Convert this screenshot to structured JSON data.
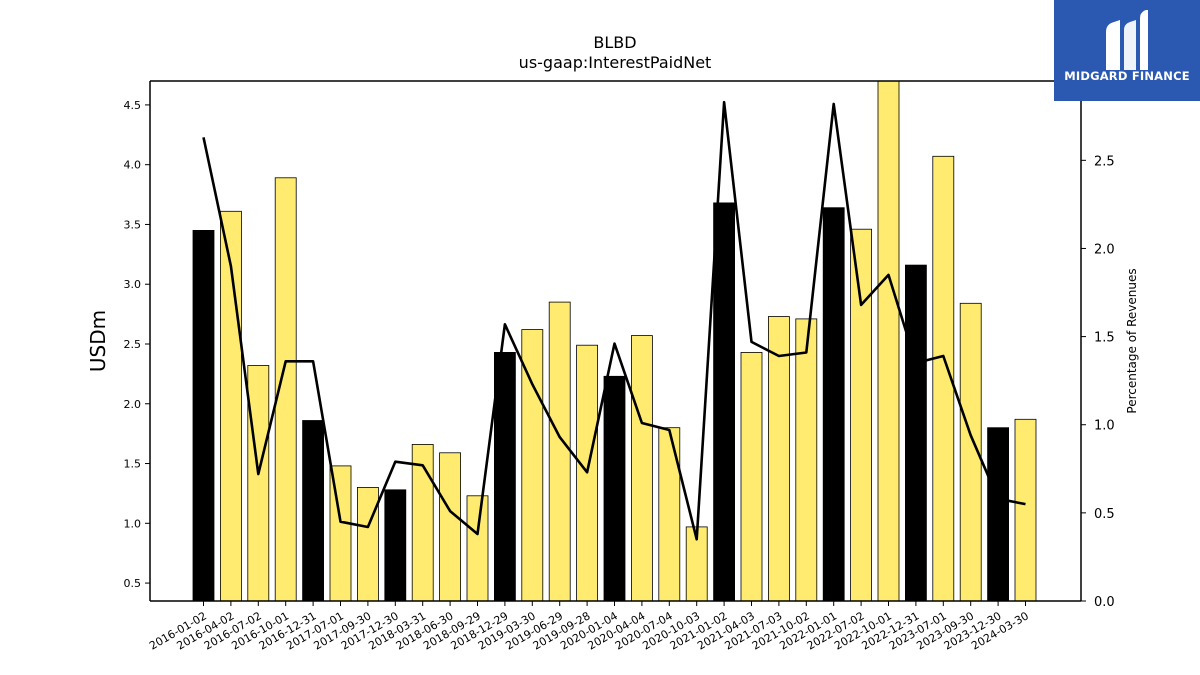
{
  "brand": {
    "name": "MIDGARD FINANCE",
    "logo_icon": "midgard-m-logo-icon",
    "background": "#2b58b0"
  },
  "chart_data": {
    "type": "bar",
    "title": "BLBD",
    "subtitle": "us-gaap:InterestPaidNet",
    "ylabel": "USDm",
    "y2label": "Percentage of Revenues",
    "ylim": [
      0.35,
      4.7
    ],
    "y2lim": [
      0.0,
      2.95
    ],
    "yticks": [
      "0.5",
      "1.0",
      "1.5",
      "2.0",
      "2.5",
      "3.0",
      "3.5",
      "4.0",
      "4.5"
    ],
    "y2ticks": [
      "0.0",
      "0.5",
      "1.0",
      "1.5",
      "2.0",
      "2.5"
    ],
    "categories": [
      "2016-01-02",
      "2016-04-02",
      "2016-07-02",
      "2016-10-01",
      "2016-12-31",
      "2017-07-01",
      "2017-09-30",
      "2017-12-30",
      "2018-03-31",
      "2018-06-30",
      "2018-09-29",
      "2018-12-29",
      "2019-03-30",
      "2019-06-29",
      "2019-09-28",
      "2020-01-04",
      "2020-04-04",
      "2020-07-04",
      "2020-10-03",
      "2021-01-02",
      "2021-04-03",
      "2021-07-03",
      "2021-10-02",
      "2022-01-01",
      "2022-07-02",
      "2022-10-01",
      "2022-12-31",
      "2023-07-01",
      "2023-09-30",
      "2023-12-30",
      "2024-03-30"
    ],
    "series": [
      {
        "type": "bar",
        "values": [
          3.45,
          3.61,
          2.32,
          3.89,
          1.86,
          1.48,
          1.3,
          1.28,
          1.66,
          1.59,
          1.23,
          2.43,
          2.62,
          2.85,
          2.49,
          2.23,
          2.57,
          1.8,
          0.97,
          3.68,
          2.43,
          2.73,
          2.71,
          3.64,
          3.46,
          4.72,
          3.16,
          4.07,
          2.84,
          1.8,
          1.87
        ],
        "highlight": [
          true,
          false,
          false,
          false,
          true,
          false,
          false,
          true,
          false,
          false,
          false,
          true,
          false,
          false,
          false,
          true,
          false,
          false,
          false,
          true,
          false,
          false,
          false,
          true,
          false,
          false,
          true,
          false,
          false,
          true,
          false
        ]
      },
      {
        "type": "line",
        "axis": "right",
        "values": [
          2.63,
          1.9,
          0.72,
          1.36,
          1.36,
          0.45,
          0.42,
          0.79,
          0.77,
          0.51,
          0.38,
          1.57,
          1.23,
          0.93,
          0.73,
          1.46,
          1.01,
          0.97,
          0.35,
          2.83,
          1.47,
          1.39,
          1.41,
          2.82,
          1.68,
          1.85,
          1.35,
          1.39,
          0.94,
          0.58,
          0.55
        ]
      }
    ],
    "colors": {
      "bar": "#ffeb70",
      "bar_highlight": "#000000",
      "bar_edge": "#000000",
      "line": "#000000"
    },
    "grid": false
  }
}
